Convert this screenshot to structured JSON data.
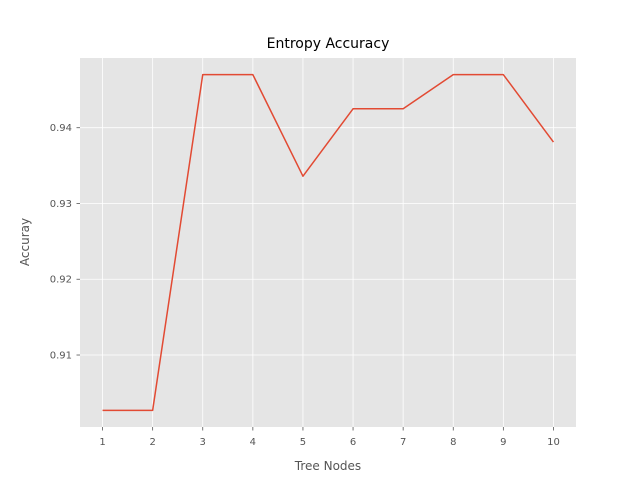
{
  "chart_data": {
    "type": "line",
    "title": "Entropy Accuracy",
    "xlabel": "Tree Nodes",
    "ylabel": "Accuray",
    "x": [
      1,
      2,
      3,
      4,
      5,
      6,
      7,
      8,
      9,
      10
    ],
    "x_tick_labels": [
      "1",
      "2",
      "3",
      "4",
      "5",
      "6",
      "7",
      "8",
      "9",
      "10"
    ],
    "series": [
      {
        "values": [
          0.9027,
          0.9027,
          0.947,
          0.947,
          0.9336,
          0.9425,
          0.9425,
          0.947,
          0.947,
          0.9381
        ]
      }
    ],
    "y_ticks": [
      0.91,
      0.92,
      0.93,
      0.94
    ],
    "y_tick_labels": [
      "0.91",
      "0.92",
      "0.93",
      "0.94"
    ],
    "xlim": [
      0.55,
      10.45
    ],
    "ylim": [
      0.9005,
      0.9492
    ],
    "grid": true,
    "colors": {
      "line": "#e24a33",
      "background": "#e5e5e5",
      "grid": "#ffffff",
      "tick": "#555555"
    }
  }
}
